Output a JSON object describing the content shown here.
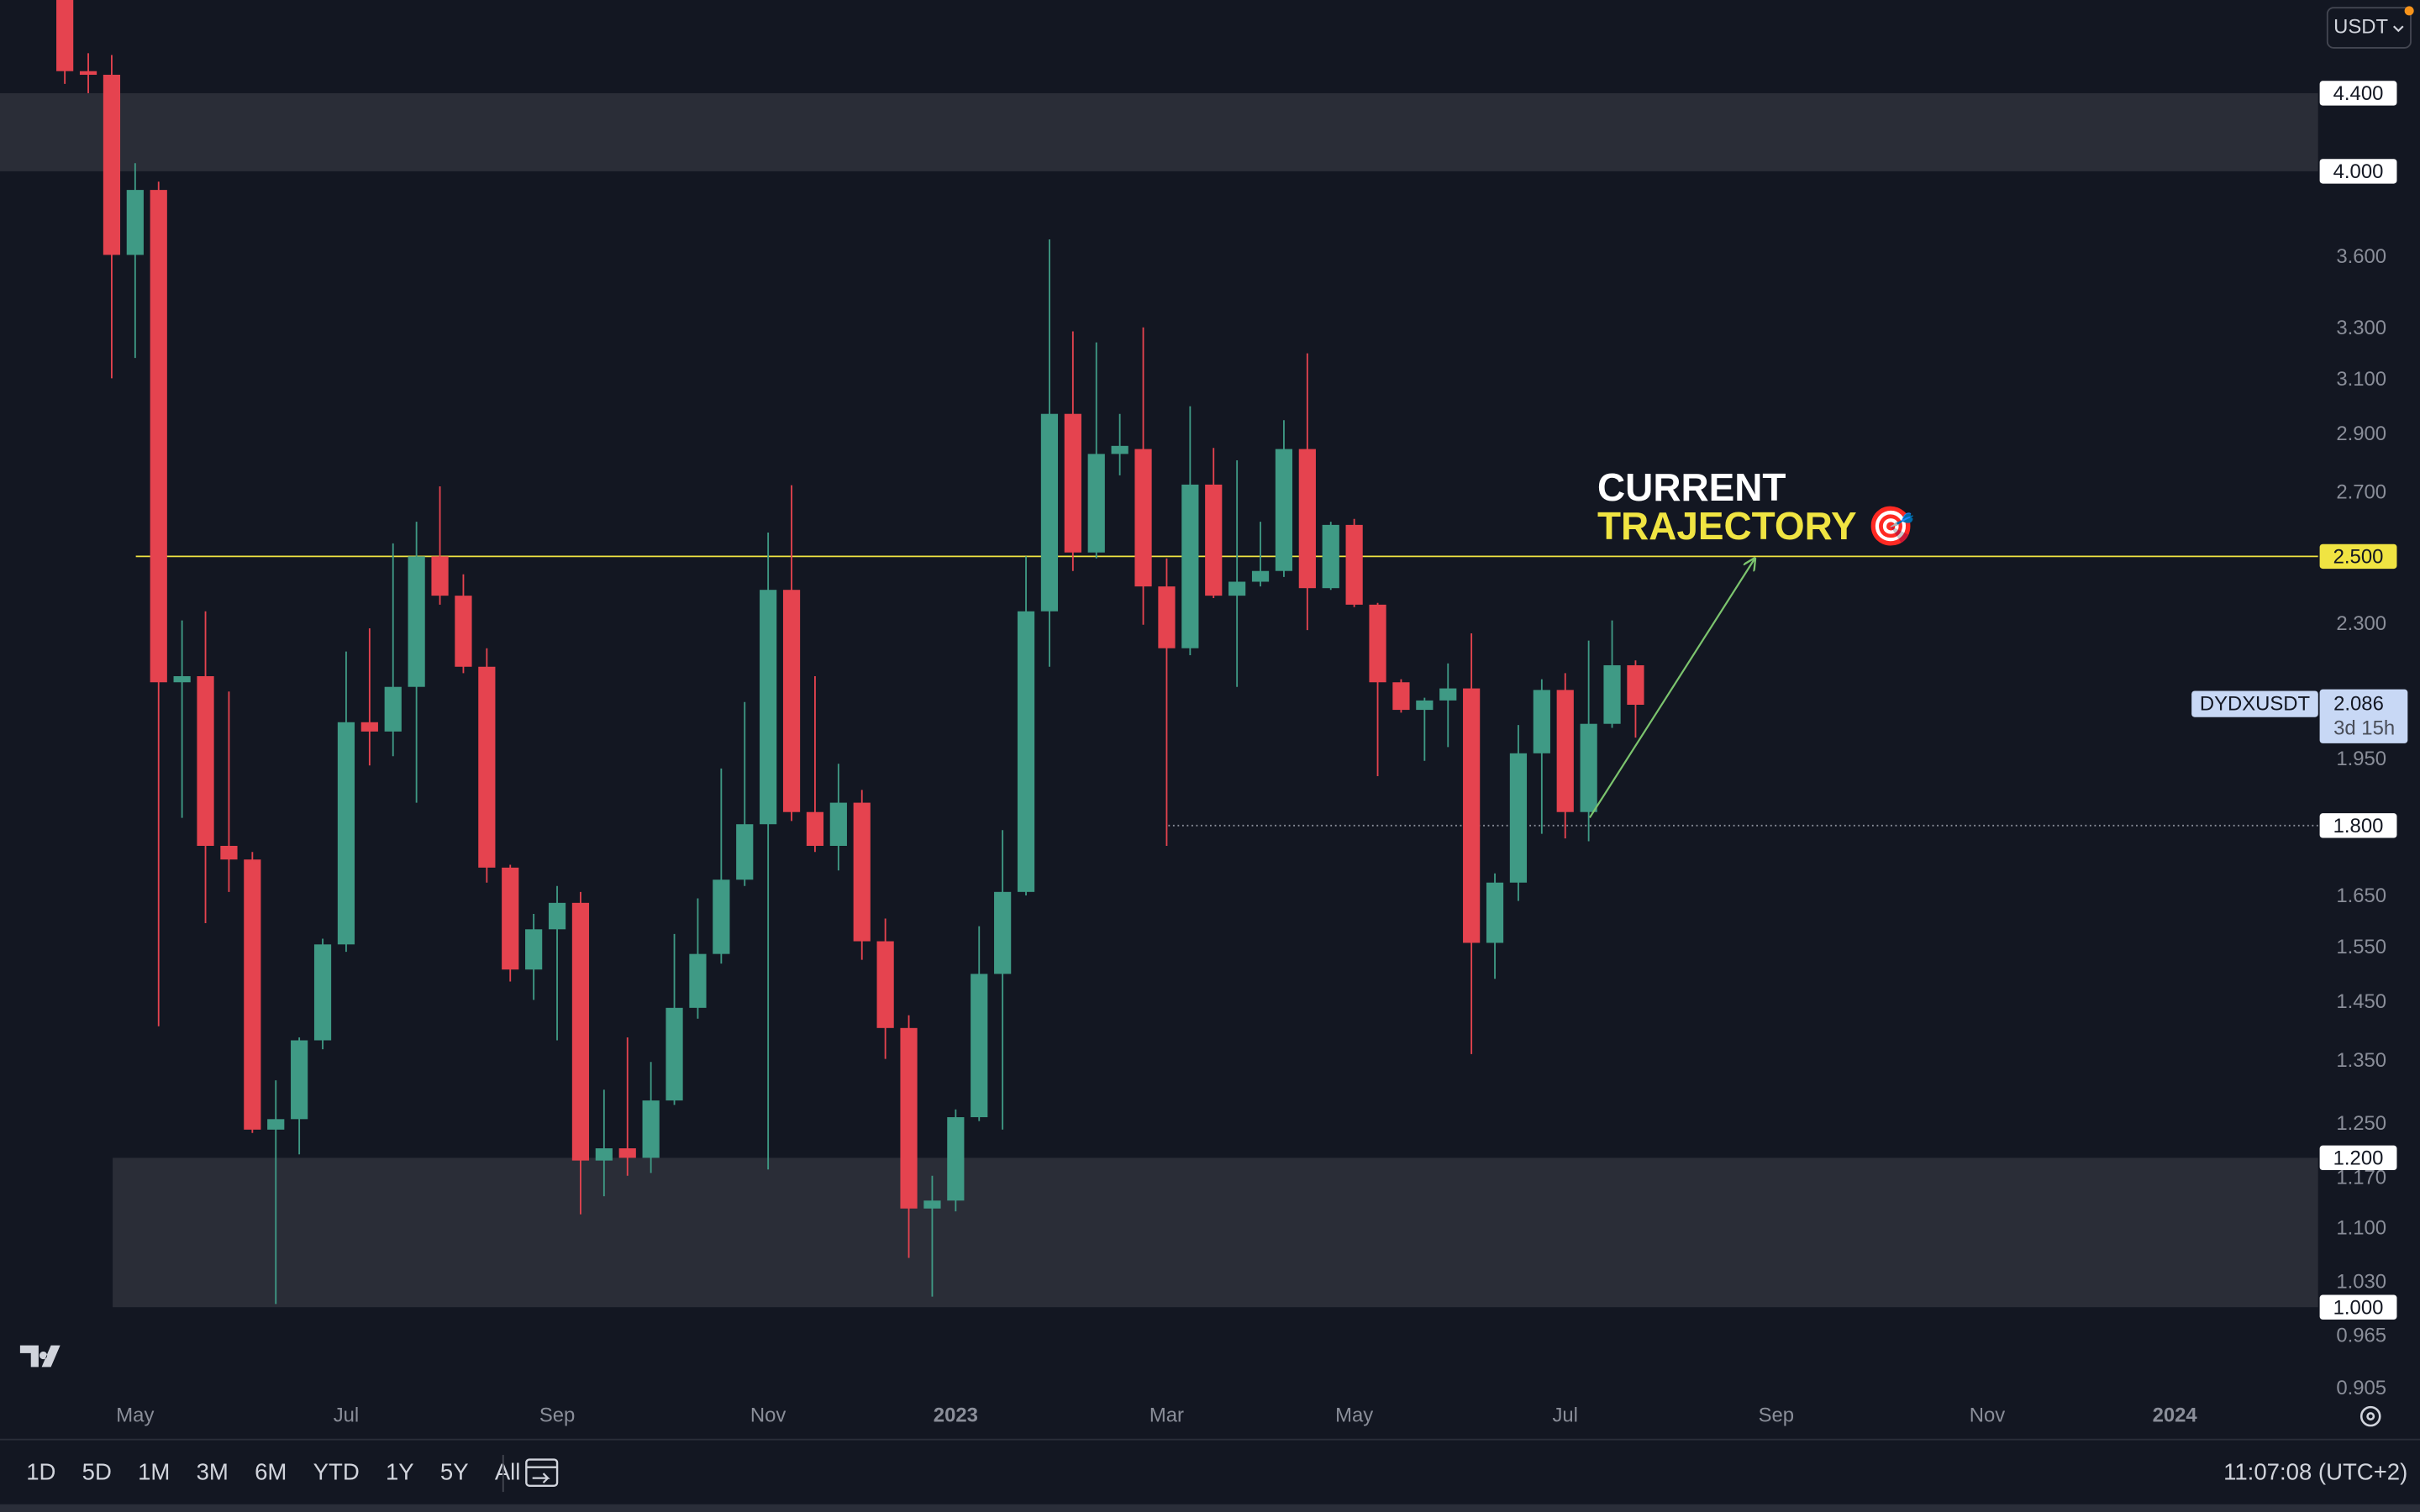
{
  "chart_data": {
    "type": "candlestick",
    "symbol": "DYDXUSDT",
    "currency": "USDT",
    "countdown": "3d 15h",
    "annotation": [
      "CURRENT",
      "TRAJECTORY 🎯"
    ],
    "log_scale": true,
    "up_color": "#3f9a85",
    "down_color": "#e5434f",
    "categories": [
      null,
      null,
      null,
      "May",
      null,
      null,
      null,
      null,
      null,
      null,
      null,
      null,
      "Jul",
      null,
      null,
      null,
      null,
      null,
      null,
      null,
      null,
      "Sep",
      null,
      null,
      null,
      null,
      null,
      null,
      null,
      null,
      "Nov",
      null,
      null,
      null,
      null,
      null,
      null,
      null,
      "2023",
      null,
      null,
      null,
      null,
      null,
      null,
      null,
      null,
      "Mar",
      null,
      null,
      null,
      null,
      null,
      null,
      null,
      "May",
      null,
      null,
      null,
      null,
      null,
      null,
      null,
      null,
      "Jul",
      null,
      null,
      null,
      null,
      null,
      null,
      null,
      null,
      "Sep",
      null,
      null,
      null,
      null,
      null,
      null,
      null,
      null,
      "Nov",
      null,
      null,
      null,
      null,
      null,
      null,
      null,
      "2024",
      null
    ],
    "open": [
      4.95,
      4.52,
      4.5,
      3.612,
      3.91,
      2.144,
      2.16,
      1.756,
      1.727,
      1.242,
      1.258,
      1.385,
      1.557,
      2.042,
      2.019,
      2.132,
      2.5,
      2.383,
      2.185,
      1.71,
      1.51,
      1.586,
      1.638,
      1.196,
      1.214,
      1.2,
      1.287,
      1.441,
      1.539,
      1.685,
      1.803,
      2.4,
      1.83,
      1.756,
      1.851,
      1.563,
      1.406,
      1.128,
      1.139,
      1.261,
      1.502,
      1.66,
      2.338,
      2.975,
      2.512,
      2.833,
      2.85,
      2.41,
      2.235,
      2.729,
      2.383,
      2.424,
      2.456,
      2.85,
      2.405,
      2.598,
      2.357,
      2.144,
      2.073,
      2.097,
      2.128,
      1.56,
      1.679,
      1.966,
      2.124,
      1.83,
      2.038,
      2.189,
      null,
      null,
      null,
      null,
      null,
      null,
      null,
      null,
      null,
      null,
      null,
      null,
      null,
      null,
      null,
      null,
      null,
      null,
      null,
      null,
      null,
      null,
      null,
      null
    ],
    "high": [
      5.2,
      4.62,
      4.61,
      4.04,
      3.95,
      2.312,
      2.338,
      2.12,
      1.743,
      1.319,
      1.39,
      1.568,
      2.226,
      2.29,
      2.54,
      2.608,
      2.723,
      2.446,
      2.235,
      1.716,
      1.616,
      1.672,
      1.66,
      1.304,
      1.39,
      1.349,
      1.577,
      1.647,
      1.93,
      2.093,
      2.574,
      2.727,
      2.16,
      1.941,
      1.88,
      1.607,
      1.428,
      1.174,
      1.273,
      1.592,
      1.79,
      2.5,
      3.681,
      3.29,
      3.246,
      2.975,
      3.306,
      2.494,
      3.003,
      2.854,
      2.811,
      2.608,
      2.952,
      3.203,
      2.608,
      2.617,
      2.362,
      2.152,
      2.104,
      2.194,
      2.276,
      1.698,
      2.035,
      2.152,
      2.168,
      2.256,
      2.312,
      2.202,
      null,
      null,
      null,
      null,
      null,
      null,
      null,
      null,
      null,
      null,
      null,
      null,
      null,
      null,
      null,
      null,
      null,
      null,
      null,
      null,
      null,
      null,
      null,
      null
    ],
    "low": [
      4.45,
      4.4,
      3.107,
      3.185,
      1.409,
      1.817,
      1.598,
      1.66,
      1.237,
      1.004,
      1.205,
      1.37,
      1.543,
      1.937,
      1.959,
      1.851,
      2.357,
      2.168,
      1.679,
      1.488,
      1.455,
      1.385,
      1.12,
      1.145,
      1.174,
      1.178,
      1.28,
      1.422,
      1.521,
      1.672,
      1.183,
      1.81,
      1.743,
      1.704,
      1.528,
      1.354,
      1.062,
      1.013,
      1.124,
      1.255,
      1.242,
      1.653,
      2.185,
      2.456,
      2.494,
      2.76,
      2.3,
      1.756,
      2.216,
      2.376,
      2.132,
      2.41,
      2.438,
      2.285,
      2.4,
      2.35,
      1.912,
      2.066,
      1.948,
      1.981,
      1.362,
      1.493,
      1.642,
      1.782,
      1.772,
      1.766,
      2.028,
      2.004,
      null,
      null,
      null,
      null,
      null,
      null,
      null,
      null,
      null,
      null,
      null,
      null,
      null,
      null,
      null,
      null,
      null,
      null,
      null,
      null,
      null,
      null,
      null,
      null
    ],
    "close": [
      4.52,
      4.5,
      3.612,
      3.91,
      2.144,
      2.16,
      1.756,
      1.727,
      1.242,
      1.258,
      1.385,
      1.557,
      2.042,
      2.019,
      2.132,
      2.5,
      2.383,
      2.185,
      1.71,
      1.51,
      1.586,
      1.638,
      1.196,
      1.214,
      1.2,
      1.287,
      1.441,
      1.539,
      1.685,
      1.803,
      2.4,
      1.83,
      1.756,
      1.851,
      1.563,
      1.406,
      1.128,
      1.139,
      1.261,
      1.502,
      1.66,
      2.338,
      2.975,
      2.512,
      2.833,
      2.861,
      2.41,
      2.235,
      2.729,
      2.383,
      2.424,
      2.456,
      2.85,
      2.405,
      2.598,
      2.357,
      2.144,
      2.073,
      2.097,
      2.128,
      1.56,
      1.679,
      1.966,
      2.124,
      1.83,
      2.038,
      2.189,
      2.086,
      null,
      null,
      null,
      null,
      null,
      null,
      null,
      null,
      null,
      null,
      null,
      null,
      null,
      null,
      null,
      null,
      null,
      null,
      null,
      null,
      null,
      null,
      null,
      null
    ],
    "ylim": [
      0.897,
      4.93
    ],
    "yticks": [
      {
        "value": 3.6,
        "label": "3.600"
      },
      {
        "value": 3.3,
        "label": "3.300"
      },
      {
        "value": 3.1,
        "label": "3.100"
      },
      {
        "value": 2.9,
        "label": "2.900"
      },
      {
        "value": 2.7,
        "label": "2.700"
      },
      {
        "value": 2.3,
        "label": "2.300"
      },
      {
        "value": 1.95,
        "label": "1.950"
      },
      {
        "value": 1.65,
        "label": "1.650"
      },
      {
        "value": 1.55,
        "label": "1.550"
      },
      {
        "value": 1.45,
        "label": "1.450"
      },
      {
        "value": 1.35,
        "label": "1.350"
      },
      {
        "value": 1.25,
        "label": "1.250"
      },
      {
        "value": 1.17,
        "label": "1.170"
      },
      {
        "value": 1.1,
        "label": "1.100"
      },
      {
        "value": 1.03,
        "label": "1.030"
      },
      {
        "value": 0.965,
        "label": "0.965"
      },
      {
        "value": 0.905,
        "label": "0.905"
      }
    ],
    "zones": [
      {
        "low": 4.0,
        "high": 4.4
      },
      {
        "low": 1.0,
        "high": 1.2
      }
    ],
    "levels": [
      {
        "value": 4.4,
        "label": "4.400"
      },
      {
        "value": 4.0,
        "label": "4.000"
      },
      {
        "value": 2.5,
        "label": "2.500",
        "color": "#f0e442",
        "line": "solid"
      },
      {
        "value": 1.8,
        "label": "1.800",
        "line": "dotted"
      },
      {
        "value": 1.2,
        "label": "1.200"
      },
      {
        "value": 1.0,
        "label": "1.000"
      }
    ]
  },
  "toolbar": {
    "ranges": [
      "1D",
      "5D",
      "1M",
      "3M",
      "6M",
      "YTD",
      "1Y",
      "5Y",
      "All"
    ],
    "clock": "11:07:08 (UTC+2)"
  }
}
